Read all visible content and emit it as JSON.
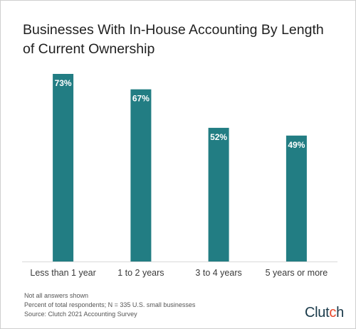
{
  "title": "Businesses With In-House Accounting By Length of Current Ownership",
  "chart_data": {
    "type": "bar",
    "title": "Businesses With In-House Accounting By Length of Current Ownership",
    "categories": [
      "Less than 1 year",
      "1 to 2 years",
      "3 to 4 years",
      "5 years or more"
    ],
    "values": [
      73,
      67,
      52,
      49
    ],
    "value_labels": [
      "73%",
      "67%",
      "52%",
      "49%"
    ],
    "ylim": [
      0,
      100
    ],
    "grid": false,
    "color": "#227d83"
  },
  "footnotes": [
    "Not all answers shown",
    "Percent of total respondents; N = 335 U.S. small businesses",
    "Source: Clutch 2021 Accounting Survey"
  ],
  "brand": {
    "text_main": "Clut",
    "text_accent": "c",
    "text_end": "h",
    "accent_color": "#e8472b"
  }
}
